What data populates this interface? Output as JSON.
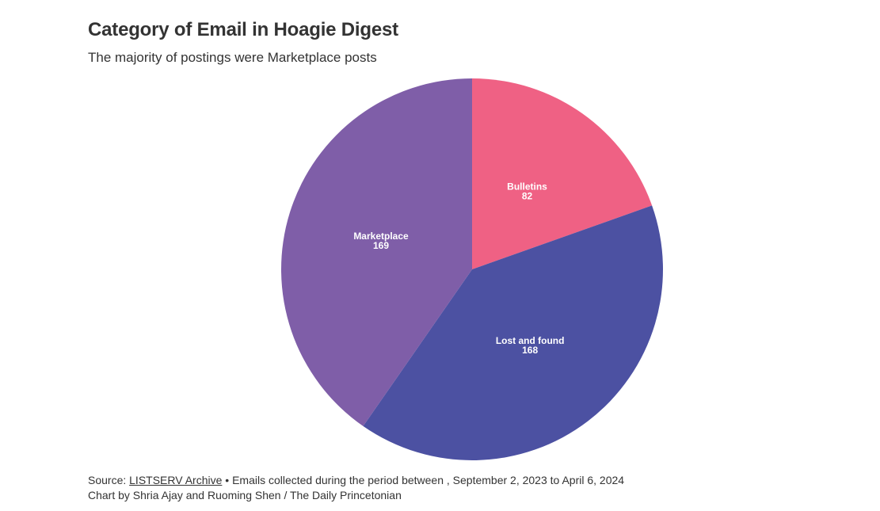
{
  "header": {
    "title": "Category of Email in Hoagie Digest",
    "subtitle": "The majority of postings were Marketplace posts"
  },
  "chart_data": {
    "type": "pie",
    "slices": [
      {
        "label": "Bulletins",
        "value": 82,
        "color": "#ef6184"
      },
      {
        "label": "Lost and found",
        "value": 168,
        "color": "#4c51a2"
      },
      {
        "label": "Marketplace",
        "value": 169,
        "color": "#7f5ea8"
      }
    ],
    "start_angle_deg": 0,
    "direction": "clockwise",
    "legend": "none"
  },
  "footer": {
    "source_prefix": "Source: ",
    "source_link": "LISTSERV Archive",
    "source_rest": " • Emails collected during the period between , September 2, 2023 to April 6, 2024",
    "byline": "Chart by Shria Ajay and Ruoming Shen / The Daily Princetonian"
  }
}
